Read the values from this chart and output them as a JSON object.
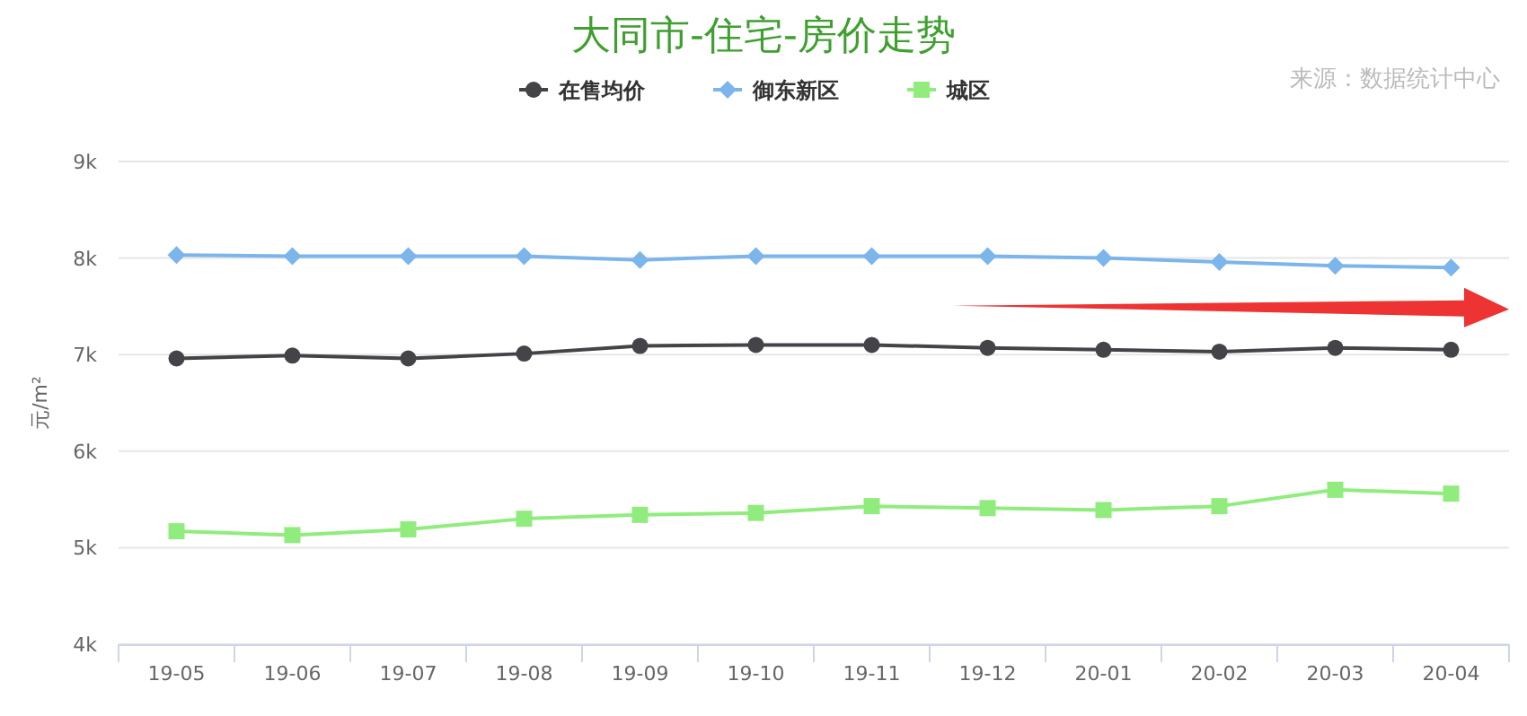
{
  "chart_data": {
    "type": "line",
    "title": "大同市-住宅-房价走势",
    "ylabel": "元/m²",
    "annotations": [
      "来源：数据统计中心"
    ],
    "categories": [
      "19-05",
      "19-06",
      "19-07",
      "19-08",
      "19-09",
      "19-10",
      "19-11",
      "19-12",
      "20-01",
      "20-02",
      "20-03",
      "20-04"
    ],
    "series": [
      {
        "name": "在售均价",
        "color": "#434348",
        "marker": "circle",
        "values": [
          6960,
          6990,
          6960,
          7010,
          7090,
          7100,
          7100,
          7070,
          7050,
          7030,
          7070,
          7050
        ]
      },
      {
        "name": "御东新区",
        "color": "#7cb5ec",
        "marker": "diamond",
        "values": [
          8030,
          8020,
          8020,
          8020,
          7980,
          8020,
          8020,
          8020,
          8000,
          7960,
          7920,
          7900
        ]
      },
      {
        "name": "城区",
        "color": "#90ed7d",
        "marker": "square",
        "values": [
          5170,
          5130,
          5190,
          5300,
          5340,
          5360,
          5430,
          5410,
          5390,
          5430,
          5600,
          5560
        ]
      }
    ],
    "ylim": [
      4000,
      9000
    ],
    "yticks": [
      {
        "value": 4000,
        "label": "4k"
      },
      {
        "value": 5000,
        "label": "5k"
      },
      {
        "value": 6000,
        "label": "6k"
      },
      {
        "value": 7000,
        "label": "7k"
      },
      {
        "value": 8000,
        "label": "8k"
      },
      {
        "value": 9000,
        "label": "9k"
      }
    ],
    "grid": "y",
    "legend": "top"
  }
}
